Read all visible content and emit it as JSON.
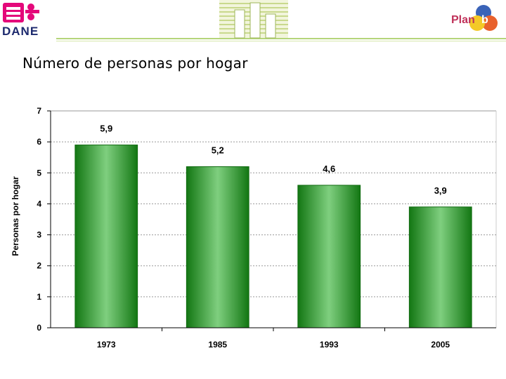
{
  "header": {
    "logo_left_text": "DANE",
    "logo_right_text": "Plan",
    "logo_right_suffix": "b"
  },
  "title": "Número de personas por hogar",
  "chart_data": {
    "type": "bar",
    "categories": [
      "1973",
      "1985",
      "1993",
      "2005"
    ],
    "values": [
      5.9,
      5.2,
      4.6,
      3.9
    ],
    "value_labels": [
      "5,9",
      "5,2",
      "4,6",
      "3,9"
    ],
    "title": "",
    "xlabel": "",
    "ylabel": "Personas por hogar",
    "ylim": [
      0,
      7
    ],
    "yticks": [
      "0",
      "1",
      "2",
      "3",
      "4",
      "5",
      "6",
      "7"
    ],
    "grid": true,
    "legend": "none",
    "colors": {
      "bar": "#2e9a2e",
      "bar_light": "#7fcf7f",
      "bar_dark": "#137713",
      "grid": "#999999"
    }
  }
}
